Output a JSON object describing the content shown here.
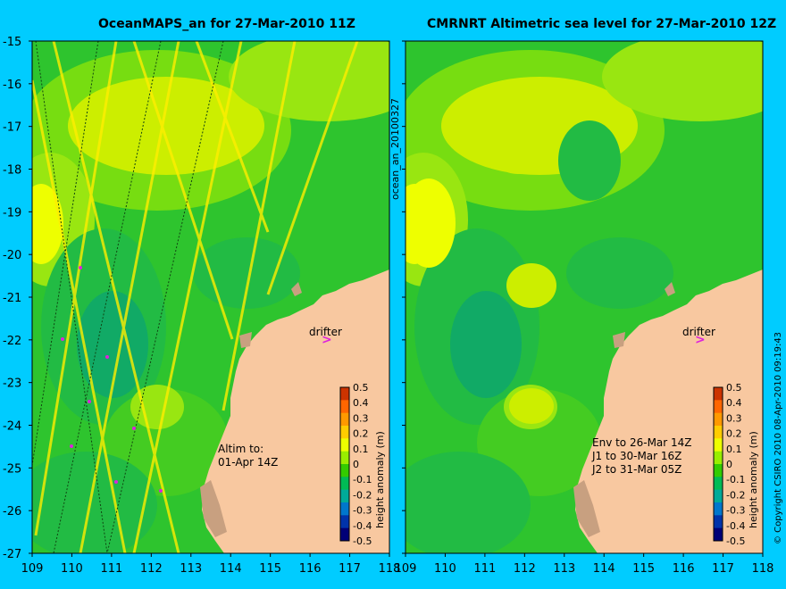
{
  "panels": {
    "left": {
      "title": "OceanMAPS_an for 27-Mar-2010 11Z",
      "annotation": [
        "Altim to:",
        "01-Apr 14Z"
      ]
    },
    "right": {
      "title": "CMRNRT Altimetric sea level  for 27-Mar-2010 12Z",
      "annotation": [
        "Env to 26-Mar 14Z",
        "J1 to 30-Mar 16Z",
        "J2 to 31-Mar 05Z"
      ]
    }
  },
  "drifter_label": "drifter",
  "drifter_marker": ">",
  "side_label": "ocean_an_20100327",
  "copyright": "© Copyright CSIRO 2010   08-Apr-2010 09:19:43",
  "map_axes": {
    "lon_ticks": [
      "109",
      "110",
      "111",
      "112",
      "113",
      "114",
      "115",
      "116",
      "117",
      "118"
    ],
    "lat_ticks": [
      "-15",
      "-16",
      "-17",
      "-18",
      "-19",
      "-20",
      "-21",
      "-22",
      "-23",
      "-24",
      "-25",
      "-26",
      "-27"
    ],
    "lon_range": [
      109,
      118
    ],
    "lat_range": [
      -27,
      -15
    ]
  },
  "colorbar": {
    "label": "height anomaly (m)",
    "ticks": [
      "0.5",
      "0.4",
      "0.3",
      "0.2",
      "0.1",
      "0",
      "-0.1",
      "-0.2",
      "-0.3",
      "-0.4",
      "-0.5"
    ],
    "colors": [
      "#cc3300",
      "#ff6600",
      "#ff9900",
      "#ffcc00",
      "#eeff00",
      "#99ee00",
      "#33cc00",
      "#00bb55",
      "#00aa99",
      "#0077cc",
      "#0033aa",
      "#000077"
    ]
  },
  "colors": {
    "background": "#00ccff",
    "land": "#f8c8a0",
    "ocean_base": "#33cc33"
  }
}
